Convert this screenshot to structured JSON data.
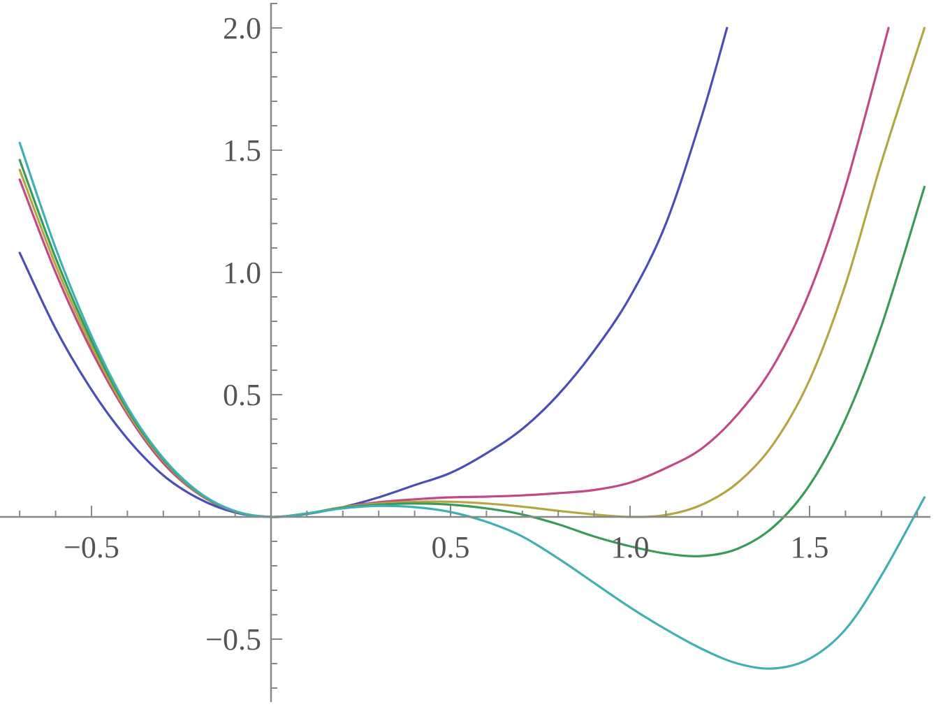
{
  "chart_data": {
    "type": "line",
    "title": "",
    "xlabel": "",
    "ylabel": "",
    "xlim": [
      -0.7,
      1.85
    ],
    "ylim": [
      -0.75,
      2.1
    ],
    "grid": false,
    "legend": "none",
    "axis_color": "#888888",
    "x_ticks": [
      {
        "value": -0.5,
        "label": "−0.5"
      },
      {
        "value": 0.5,
        "label": "0.5"
      },
      {
        "value": 1.0,
        "label": "1.0"
      },
      {
        "value": 1.5,
        "label": "1.5"
      }
    ],
    "y_ticks": [
      {
        "value": -0.5,
        "label": "−0.5"
      },
      {
        "value": 0.5,
        "label": "0.5"
      },
      {
        "value": 1.0,
        "label": "1.0"
      },
      {
        "value": 1.5,
        "label": "1.5"
      },
      {
        "value": 2.0,
        "label": "2.0"
      }
    ],
    "series": [
      {
        "color": "#4a4eb8",
        "points": [
          [
            -0.7,
            1.08
          ],
          [
            -0.6,
            0.77
          ],
          [
            -0.5,
            0.52
          ],
          [
            -0.4,
            0.32
          ],
          [
            -0.3,
            0.17
          ],
          [
            -0.2,
            0.074
          ],
          [
            -0.1,
            0.018
          ],
          [
            0,
            0
          ],
          [
            0.1,
            0.012
          ],
          [
            0.2,
            0.04
          ],
          [
            0.3,
            0.08
          ],
          [
            0.4,
            0.13
          ],
          [
            0.5,
            0.18
          ],
          [
            0.6,
            0.26
          ],
          [
            0.7,
            0.36
          ],
          [
            0.8,
            0.5
          ],
          [
            0.9,
            0.68
          ],
          [
            1.0,
            0.9
          ],
          [
            1.1,
            1.2
          ],
          [
            1.2,
            1.64
          ],
          [
            1.27,
            2.0
          ]
        ]
      },
      {
        "color": "#c24886",
        "points": [
          [
            -0.7,
            1.38
          ],
          [
            -0.6,
            1.0
          ],
          [
            -0.5,
            0.68
          ],
          [
            -0.4,
            0.42
          ],
          [
            -0.3,
            0.22
          ],
          [
            -0.2,
            0.092
          ],
          [
            -0.1,
            0.022
          ],
          [
            0,
            0
          ],
          [
            0.1,
            0.014
          ],
          [
            0.2,
            0.04
          ],
          [
            0.3,
            0.06
          ],
          [
            0.4,
            0.072
          ],
          [
            0.5,
            0.08
          ],
          [
            0.6,
            0.083
          ],
          [
            0.7,
            0.088
          ],
          [
            0.8,
            0.097
          ],
          [
            0.9,
            0.11
          ],
          [
            1.0,
            0.14
          ],
          [
            1.1,
            0.2
          ],
          [
            1.2,
            0.28
          ],
          [
            1.3,
            0.42
          ],
          [
            1.4,
            0.62
          ],
          [
            1.5,
            0.92
          ],
          [
            1.6,
            1.35
          ],
          [
            1.72,
            2.0
          ]
        ]
      },
      {
        "color": "#b5a644",
        "points": [
          [
            -0.7,
            1.42
          ],
          [
            -0.6,
            1.03
          ],
          [
            -0.5,
            0.7
          ],
          [
            -0.4,
            0.43
          ],
          [
            -0.3,
            0.23
          ],
          [
            -0.2,
            0.095
          ],
          [
            -0.1,
            0.023
          ],
          [
            0,
            0
          ],
          [
            0.1,
            0.014
          ],
          [
            0.2,
            0.04
          ],
          [
            0.3,
            0.055
          ],
          [
            0.4,
            0.062
          ],
          [
            0.5,
            0.062
          ],
          [
            0.6,
            0.055
          ],
          [
            0.7,
            0.042
          ],
          [
            0.8,
            0.025
          ],
          [
            0.9,
            0.01
          ],
          [
            1.0,
            0.0
          ],
          [
            1.1,
            0.008
          ],
          [
            1.2,
            0.05
          ],
          [
            1.3,
            0.14
          ],
          [
            1.4,
            0.3
          ],
          [
            1.5,
            0.56
          ],
          [
            1.6,
            0.95
          ],
          [
            1.7,
            1.45
          ],
          [
            1.82,
            2.0
          ]
        ]
      },
      {
        "color": "#3a9b58",
        "points": [
          [
            -0.7,
            1.46
          ],
          [
            -0.6,
            1.06
          ],
          [
            -0.5,
            0.72
          ],
          [
            -0.4,
            0.44
          ],
          [
            -0.3,
            0.235
          ],
          [
            -0.2,
            0.097
          ],
          [
            -0.1,
            0.023
          ],
          [
            0,
            0
          ],
          [
            0.1,
            0.014
          ],
          [
            0.2,
            0.038
          ],
          [
            0.3,
            0.05
          ],
          [
            0.4,
            0.055
          ],
          [
            0.5,
            0.05
          ],
          [
            0.6,
            0.035
          ],
          [
            0.7,
            0.01
          ],
          [
            0.8,
            -0.03
          ],
          [
            0.9,
            -0.08
          ],
          [
            1.0,
            -0.12
          ],
          [
            1.1,
            -0.15
          ],
          [
            1.2,
            -0.16
          ],
          [
            1.3,
            -0.13
          ],
          [
            1.4,
            -0.04
          ],
          [
            1.5,
            0.13
          ],
          [
            1.6,
            0.4
          ],
          [
            1.7,
            0.78
          ],
          [
            1.82,
            1.35
          ]
        ]
      },
      {
        "color": "#3fb0b4",
        "points": [
          [
            -0.7,
            1.53
          ],
          [
            -0.6,
            1.1
          ],
          [
            -0.5,
            0.74
          ],
          [
            -0.4,
            0.45
          ],
          [
            -0.3,
            0.24
          ],
          [
            -0.2,
            0.1
          ],
          [
            -0.1,
            0.024
          ],
          [
            0,
            0
          ],
          [
            0.1,
            0.014
          ],
          [
            0.2,
            0.035
          ],
          [
            0.3,
            0.045
          ],
          [
            0.4,
            0.04
          ],
          [
            0.5,
            0.02
          ],
          [
            0.6,
            -0.02
          ],
          [
            0.7,
            -0.08
          ],
          [
            0.8,
            -0.17
          ],
          [
            0.9,
            -0.27
          ],
          [
            1.0,
            -0.37
          ],
          [
            1.1,
            -0.46
          ],
          [
            1.2,
            -0.54
          ],
          [
            1.3,
            -0.6
          ],
          [
            1.4,
            -0.62
          ],
          [
            1.5,
            -0.58
          ],
          [
            1.6,
            -0.46
          ],
          [
            1.7,
            -0.24
          ],
          [
            1.82,
            0.08
          ]
        ]
      }
    ]
  }
}
